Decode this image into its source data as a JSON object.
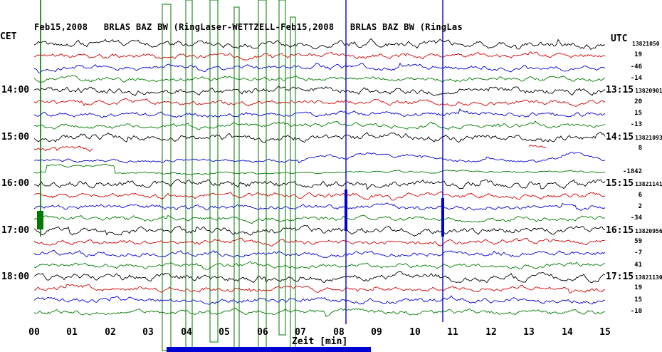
{
  "header": {
    "title": "Feb15,2008   BRLAS BAZ BW (RingLaser-WETTZELL-Feb15,2008   BRLAS BAZ BW (RingLas",
    "left_tz": "CET",
    "right_tz": "UTC"
  },
  "chart_data": {
    "type": "line",
    "title": "Feb15,2008 BRLAS BAZ BW (RingLaser-WETTZELL) helicorder drum plot",
    "xlabel": "Zeit [min]",
    "x_range": [
      0,
      15
    ],
    "x_ticks": [
      "00",
      "01",
      "02",
      "03",
      "04",
      "05",
      "06",
      "07",
      "08",
      "09",
      "10",
      "11",
      "12",
      "13",
      "14",
      "15"
    ],
    "palette": {
      "black": "#000000",
      "red": "#d40000",
      "blue": "#0000d4",
      "green": "#007a00"
    },
    "rows": [
      {
        "color": "black",
        "right_value": "13821050",
        "amp": 2.2
      },
      {
        "color": "red",
        "right_value": "19",
        "amp": 1.7
      },
      {
        "color": "blue",
        "right_value": "-46",
        "amp": 1.7
      },
      {
        "color": "green",
        "right_value": "-14",
        "amp": 1.6
      },
      {
        "color": "black",
        "left_label": "14:00",
        "right_time": "13:15",
        "right_value": "13820901",
        "amp": 2.2
      },
      {
        "color": "red",
        "right_value": "20",
        "amp": 1.7
      },
      {
        "color": "blue",
        "right_value": "15",
        "amp": 1.7
      },
      {
        "color": "green",
        "right_value": "-13",
        "amp": 1.6
      },
      {
        "color": "black",
        "left_label": "15:00",
        "right_time": "14:15",
        "right_value": "13821093",
        "amp": 2.3
      },
      {
        "color": "red",
        "right_value": "8",
        "amp": 1.6,
        "segments": [
          [
            0,
            1.55,
            0
          ],
          [
            13.0,
            13.45,
            -4
          ]
        ]
      },
      {
        "color": "blue",
        "right_value": "",
        "amp": 1.1,
        "bumps": [
          {
            "x": 7.6,
            "h": -8,
            "w": 0.45
          },
          {
            "x": 8.85,
            "h": -11,
            "w": 0.5
          },
          {
            "x": 9.85,
            "h": -7,
            "w": 0.4
          },
          {
            "x": 10.35,
            "h": -5,
            "w": 0.3
          },
          {
            "x": 14.1,
            "h": -10,
            "w": 0.35
          },
          {
            "x": 14.6,
            "h": -6,
            "w": 0.25
          }
        ]
      },
      {
        "color": "green",
        "right_value": "-1842",
        "amp": 0.7,
        "offsets": [
          {
            "x0": 0.3,
            "x1": 2.1,
            "dy": -9
          },
          {
            "x0": 2.1,
            "x1": 7.6,
            "dy": 1
          },
          {
            "x0": 7.6,
            "x1": 15,
            "dy": -1
          }
        ]
      },
      {
        "color": "black",
        "left_label": "16:00",
        "right_time": "15:15",
        "right_value": "13821141",
        "amp": 2.3
      },
      {
        "color": "red",
        "right_value": "6",
        "amp": 1.7
      },
      {
        "color": "blue",
        "right_value": "2",
        "amp": 1.7
      },
      {
        "color": "green",
        "right_value": "-34",
        "amp": 1.6
      },
      {
        "color": "black",
        "left_label": "17:00",
        "right_time": "16:15",
        "right_value": "13820956",
        "amp": 2.2
      },
      {
        "color": "red",
        "right_value": "59",
        "amp": 1.7
      },
      {
        "color": "blue",
        "right_value": "-7",
        "amp": 1.7
      },
      {
        "color": "green",
        "right_value": "41",
        "amp": 1.6
      },
      {
        "color": "black",
        "left_label": "18:00",
        "right_time": "17:15",
        "right_value": "13821130",
        "amp": 2.4
      },
      {
        "color": "red",
        "right_value": "19",
        "amp": 1.7
      },
      {
        "color": "blue",
        "right_value": "15",
        "amp": 1.7
      },
      {
        "color": "green",
        "right_value": "-10",
        "amp": 1.6
      }
    ],
    "events": {
      "green_vline": {
        "x": 57,
        "y0": 0,
        "y1": 332
      },
      "green_blob": {
        "x": 52,
        "y": 296,
        "w": 9,
        "h": 26
      },
      "green_boxes": [
        {
          "x": 228,
          "w": 12,
          "y0": 6,
          "y1": 492
        },
        {
          "x": 261,
          "w": 9,
          "y0": 0,
          "y1": 494
        },
        {
          "x": 295,
          "w": 11,
          "y0": 0,
          "y1": 480
        },
        {
          "x": 329,
          "w": 7,
          "y0": 10,
          "y1": 494
        },
        {
          "x": 363,
          "w": 11,
          "y0": 0,
          "y1": 490
        },
        {
          "x": 392,
          "w": 9,
          "y0": 0,
          "y1": 470
        },
        {
          "x": 408,
          "w": 7,
          "y0": 24,
          "y1": 494
        }
      ],
      "blue_vlines": [
        {
          "x": 486,
          "y0": 0,
          "y1": 455,
          "ty0": 266,
          "ty1": 324
        },
        {
          "x": 622,
          "y0": 0,
          "y1": 452,
          "ty0": 278,
          "ty1": 332
        }
      ],
      "blue_bottom_bar": {
        "x0": 234,
        "x1": 521,
        "y0": 487,
        "y1": 494
      }
    }
  }
}
